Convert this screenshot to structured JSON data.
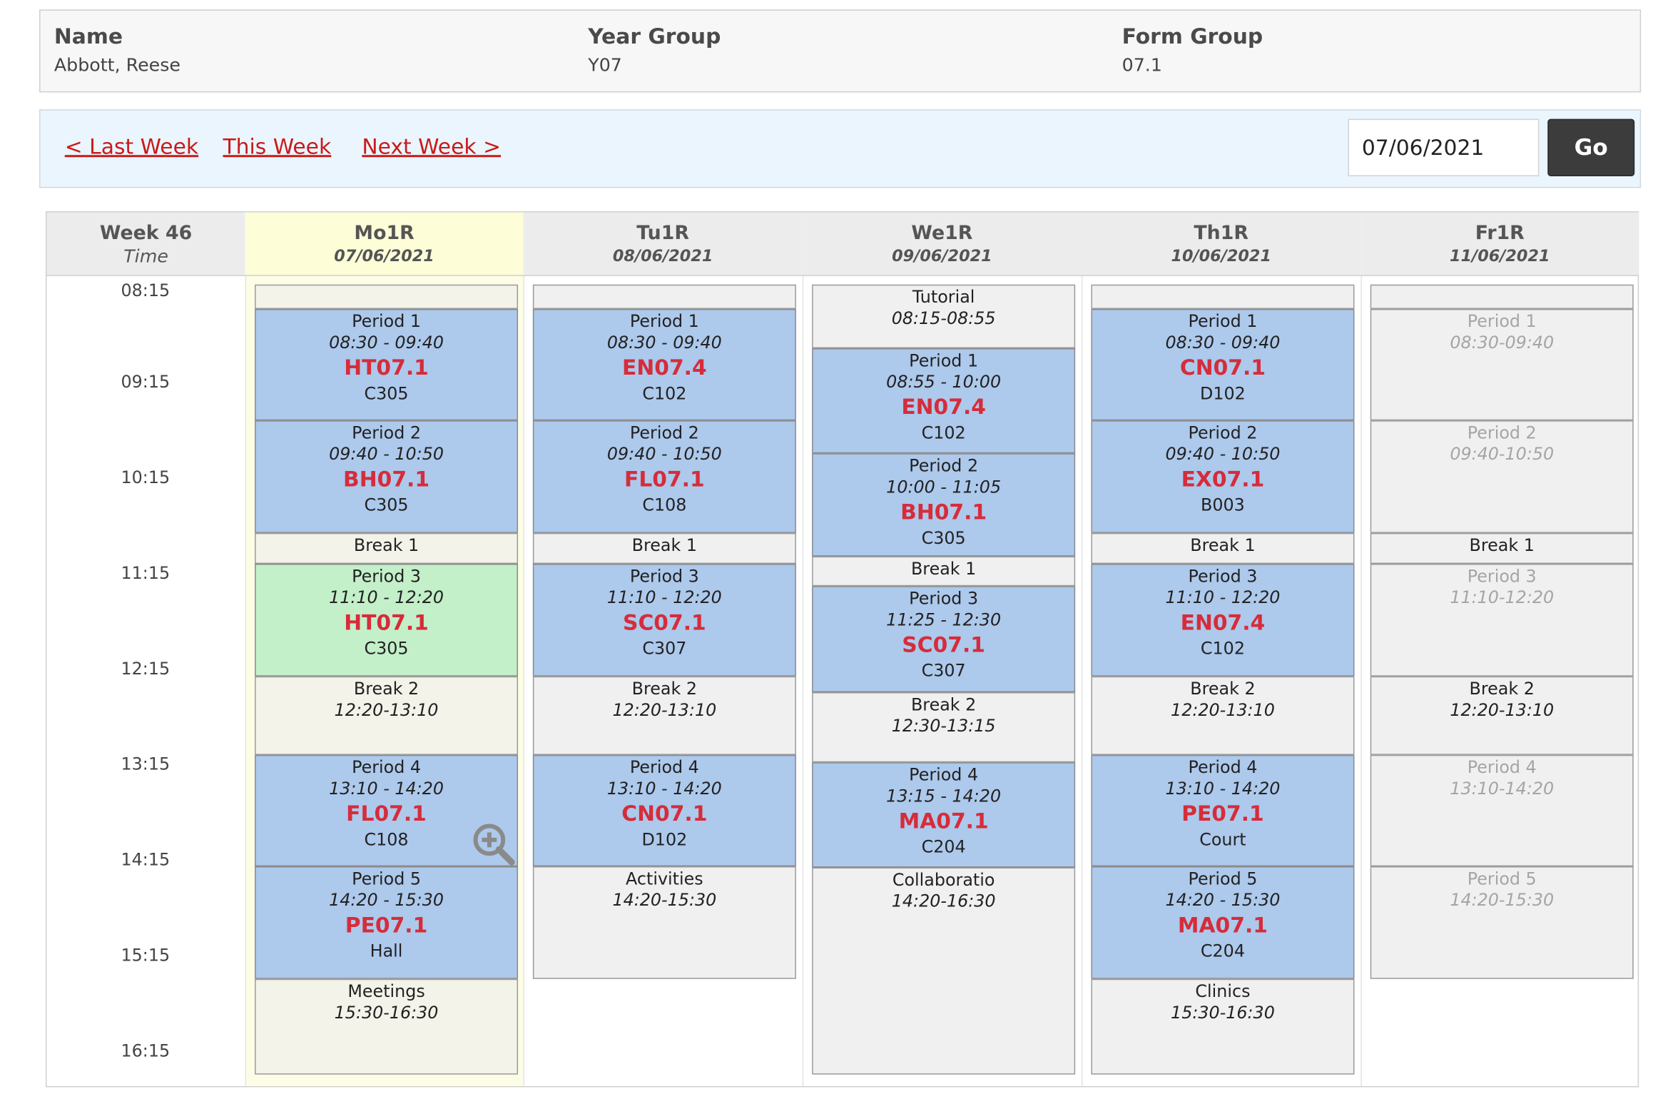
{
  "student": {
    "name_label": "Name",
    "name_value": "Abbott, Reese",
    "year_label": "Year Group",
    "year_value": "Y07",
    "form_label": "Form Group",
    "form_value": "07.1"
  },
  "nav": {
    "last_week": "< Last Week",
    "this_week": "This Week",
    "next_week": "Next Week >",
    "date_value": "07/06/2021",
    "go_label": "Go"
  },
  "grid": {
    "week_label": "Week 46",
    "time_label": "Time",
    "times": [
      "08:15",
      "09:15",
      "10:15",
      "11:15",
      "12:15",
      "13:15",
      "14:15",
      "15:15",
      "16:15"
    ],
    "days": [
      {
        "code": "Mo1R",
        "date": "07/06/2021",
        "today": true
      },
      {
        "code": "Tu1R",
        "date": "08/06/2021"
      },
      {
        "code": "We1R",
        "date": "09/06/2021"
      },
      {
        "code": "Th1R",
        "date": "10/06/2021"
      },
      {
        "code": "Fr1R",
        "date": "11/06/2021"
      }
    ],
    "slots": {
      "mon": [
        {
          "kind": "blank"
        },
        {
          "kind": "lesson",
          "period": "Period 1",
          "time": "08:30 - 09:40",
          "class": "HT07.1",
          "room": "C305"
        },
        {
          "kind": "lesson",
          "period": "Period 2",
          "time": "09:40 - 10:50",
          "class": "BH07.1",
          "room": "C305"
        },
        {
          "kind": "other",
          "period": "Break 1"
        },
        {
          "kind": "current",
          "period": "Period 3",
          "time": "11:10 - 12:20",
          "class": "HT07.1",
          "room": "C305"
        },
        {
          "kind": "other",
          "period": "Break 2",
          "time": "12:20-13:10"
        },
        {
          "kind": "lesson",
          "period": "Period 4",
          "time": "13:10 - 14:20",
          "class": "FL07.1",
          "room": "C108"
        },
        {
          "kind": "lesson",
          "period": "Period 5",
          "time": "14:20 - 15:30",
          "class": "PE07.1",
          "room": "Hall"
        },
        {
          "kind": "other",
          "period": "Meetings",
          "time": "15:30-16:30"
        }
      ],
      "tue": [
        {
          "kind": "blank"
        },
        {
          "kind": "lesson",
          "period": "Period 1",
          "time": "08:30 - 09:40",
          "class": "EN07.4",
          "room": "C102"
        },
        {
          "kind": "lesson",
          "period": "Period 2",
          "time": "09:40 - 10:50",
          "class": "FL07.1",
          "room": "C108"
        },
        {
          "kind": "other",
          "period": "Break 1"
        },
        {
          "kind": "lesson",
          "period": "Period 3",
          "time": "11:10 - 12:20",
          "class": "SC07.1",
          "room": "C307"
        },
        {
          "kind": "other",
          "period": "Break 2",
          "time": "12:20-13:10"
        },
        {
          "kind": "lesson",
          "period": "Period 4",
          "time": "13:10 - 14:20",
          "class": "CN07.1",
          "room": "D102"
        },
        {
          "kind": "other",
          "period": "Activities",
          "time": "14:20-15:30"
        }
      ],
      "wed": [
        {
          "kind": "other",
          "period": "Tutorial",
          "time": "08:15-08:55"
        },
        {
          "kind": "lesson",
          "period": "Period 1",
          "time": "08:55 - 10:00",
          "class": "EN07.4",
          "room": "C102"
        },
        {
          "kind": "lesson",
          "period": "Period 2",
          "time": "10:00 - 11:05",
          "class": "BH07.1",
          "room": "C305"
        },
        {
          "kind": "other",
          "period": "Break 1"
        },
        {
          "kind": "lesson",
          "period": "Period 3",
          "time": "11:25 - 12:30",
          "class": "SC07.1",
          "room": "C307"
        },
        {
          "kind": "other",
          "period": "Break 2",
          "time": "12:30-13:15"
        },
        {
          "kind": "lesson",
          "period": "Period 4",
          "time": "13:15 - 14:20",
          "class": "MA07.1",
          "room": "C204"
        },
        {
          "kind": "other",
          "period": "Collaboratio",
          "time": "14:20-16:30"
        }
      ],
      "thu": [
        {
          "kind": "blank"
        },
        {
          "kind": "lesson",
          "period": "Period 1",
          "time": "08:30 - 09:40",
          "class": "CN07.1",
          "room": "D102"
        },
        {
          "kind": "lesson",
          "period": "Period 2",
          "time": "09:40 - 10:50",
          "class": "EX07.1",
          "room": "B003"
        },
        {
          "kind": "other",
          "period": "Break 1"
        },
        {
          "kind": "lesson",
          "period": "Period 3",
          "time": "11:10 - 12:20",
          "class": "EN07.4",
          "room": "C102"
        },
        {
          "kind": "other",
          "period": "Break 2",
          "time": "12:20-13:10"
        },
        {
          "kind": "lesson",
          "period": "Period 4",
          "time": "13:10 - 14:20",
          "class": "PE07.1",
          "room": "Court"
        },
        {
          "kind": "lesson",
          "period": "Period 5",
          "time": "14:20 - 15:30",
          "class": "MA07.1",
          "room": "C204"
        },
        {
          "kind": "other",
          "period": "Clinics",
          "time": "15:30-16:30"
        }
      ],
      "fri": [
        {
          "kind": "blank"
        },
        {
          "kind": "disabled",
          "period": "Period 1",
          "time": "08:30-09:40"
        },
        {
          "kind": "disabled",
          "period": "Period 2",
          "time": "09:40-10:50"
        },
        {
          "kind": "other",
          "period": "Break 1"
        },
        {
          "kind": "disabled",
          "period": "Period 3",
          "time": "11:10-12:20"
        },
        {
          "kind": "other",
          "period": "Break 2",
          "time": "12:20-13:10"
        },
        {
          "kind": "disabled",
          "period": "Period 4",
          "time": "13:10-14:20"
        },
        {
          "kind": "disabled",
          "period": "Period 5",
          "time": "14:20-15:30"
        }
      ]
    },
    "zoom_icon": "zoom-in-icon"
  }
}
